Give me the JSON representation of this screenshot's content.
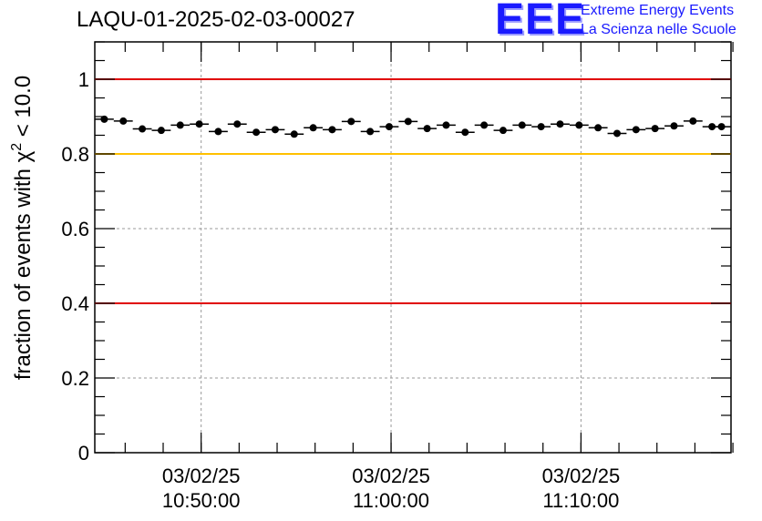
{
  "header": {
    "title": "LAQU-01-2025-02-03-00027"
  },
  "logo": {
    "mark": "EEE",
    "line1": "Extreme Energy Events",
    "line2": "La Scienza nelle Scuole"
  },
  "chart_data": {
    "type": "scatter",
    "title": "LAQU-01-2025-02-03-00027",
    "ylabel_main": "fraction of events with χ",
    "ylabel_sup": "2",
    "ylabel_tail": " < 10.0",
    "xlabel": "",
    "ylim": [
      0,
      1.1
    ],
    "yticks": [
      0,
      0.2,
      0.4,
      0.6,
      0.8,
      1
    ],
    "ytick_labels": [
      "0",
      "0.2",
      "0.4",
      "0.6",
      "0.8",
      "1"
    ],
    "xlim_minutes": [
      0,
      33.5
    ],
    "xticks": [
      {
        "date": "03/02/25",
        "time": "10:50:00",
        "pos": 5.6
      },
      {
        "date": "03/02/25",
        "time": "11:00:00",
        "pos": 15.6
      },
      {
        "date": "03/02/25",
        "time": "11:10:00",
        "pos": 25.6
      }
    ],
    "grid": true,
    "reference_lines": [
      {
        "y": 1.0,
        "color": "#e00000"
      },
      {
        "y": 0.8,
        "color": "#ffc000"
      },
      {
        "y": 0.4,
        "color": "#e00000"
      }
    ],
    "series": [
      {
        "color": "#000000",
        "x": [
          0.5,
          1.5,
          2.5,
          3.5,
          4.5,
          5.5,
          6.5,
          7.5,
          8.5,
          9.5,
          10.5,
          11.5,
          12.5,
          13.5,
          14.5,
          15.5,
          16.5,
          17.5,
          18.5,
          19.5,
          20.5,
          21.5,
          22.5,
          23.5,
          24.5,
          25.5,
          26.5,
          27.5,
          28.5,
          29.5,
          30.5,
          31.5,
          32.5,
          33.0
        ],
        "values": [
          0.893,
          0.888,
          0.867,
          0.863,
          0.877,
          0.88,
          0.86,
          0.88,
          0.858,
          0.865,
          0.853,
          0.87,
          0.865,
          0.887,
          0.86,
          0.873,
          0.887,
          0.868,
          0.877,
          0.858,
          0.877,
          0.863,
          0.877,
          0.873,
          0.88,
          0.877,
          0.87,
          0.855,
          0.865,
          0.868,
          0.875,
          0.888,
          0.873,
          0.873
        ]
      }
    ]
  }
}
